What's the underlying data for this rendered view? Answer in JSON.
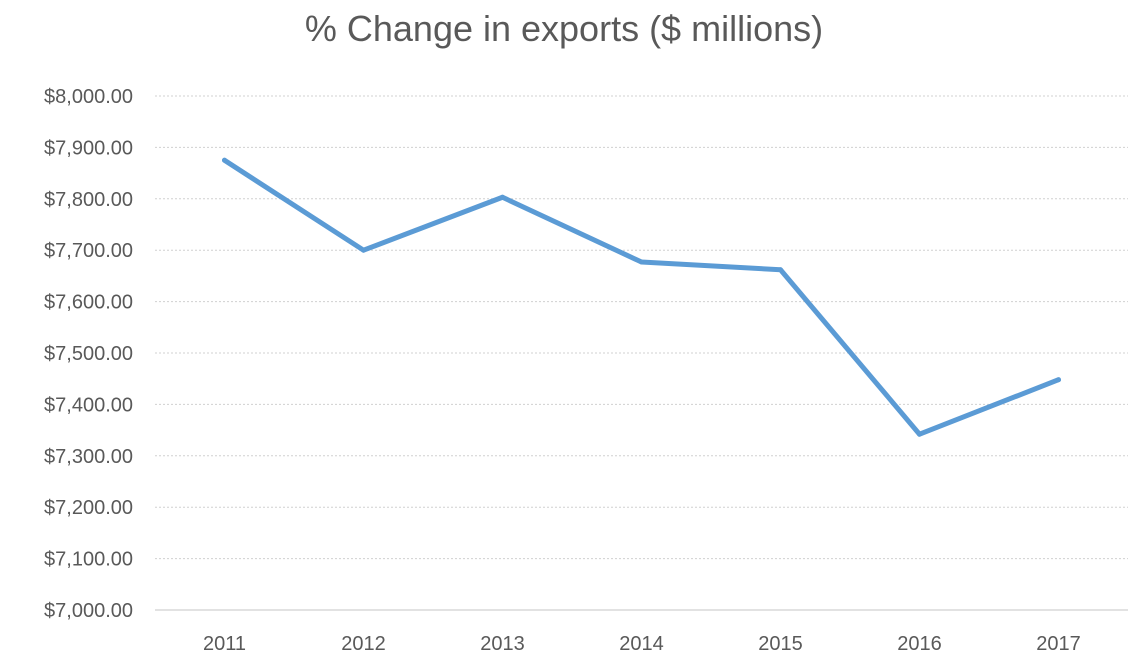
{
  "chart_data": {
    "type": "line",
    "title": "% Change in exports ($ millions)",
    "xlabel": "",
    "ylabel": "",
    "categories": [
      "2011",
      "2012",
      "2013",
      "2014",
      "2015",
      "2016",
      "2017"
    ],
    "series": [
      {
        "values": [
          7875,
          7700,
          7803,
          7677,
          7662,
          7342,
          7448
        ],
        "color": "#5b9bd5"
      }
    ],
    "ylim": [
      7000,
      8000
    ],
    "yticks": [
      7000,
      7100,
      7200,
      7300,
      7400,
      7500,
      7600,
      7700,
      7800,
      7900,
      8000
    ],
    "ytick_labels": [
      "$7,000.00",
      "$7,100.00",
      "$7,200.00",
      "$7,300.00",
      "$7,400.00",
      "$7,500.00",
      "$7,600.00",
      "$7,700.00",
      "$7,800.00",
      "$7,900.00",
      "$8,000.00"
    ],
    "grid": true,
    "legend": "none"
  }
}
